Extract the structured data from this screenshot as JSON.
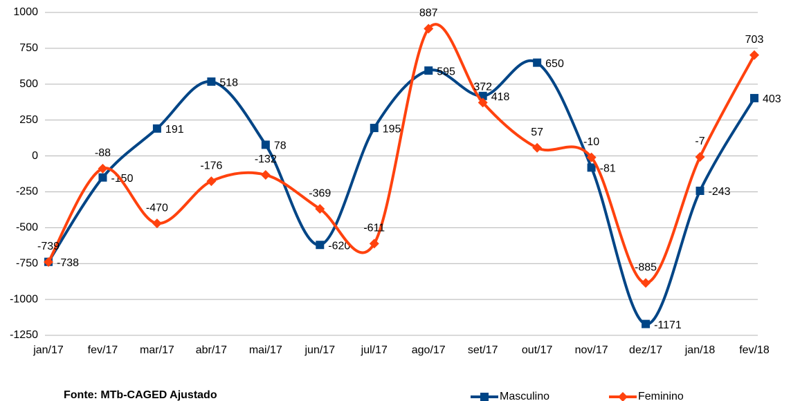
{
  "chart_data": {
    "type": "line",
    "smooth": true,
    "categories": [
      "jan/17",
      "fev/17",
      "mar/17",
      "abr/17",
      "mai/17",
      "jun/17",
      "jul/17",
      "ago/17",
      "set/17",
      "out/17",
      "nov/17",
      "dez/17",
      "jan/18",
      "fev/18"
    ],
    "series": [
      {
        "name": "Masculino",
        "color": "#004586",
        "marker": "square",
        "values": [
          -738,
          -150,
          191,
          518,
          78,
          -620,
          195,
          595,
          418,
          650,
          -81,
          -1171,
          -243,
          403
        ]
      },
      {
        "name": "Feminino",
        "color": "#ff420e",
        "marker": "diamond",
        "values": [
          -739,
          -88,
          -470,
          -176,
          -132,
          -369,
          -611,
          887,
          372,
          57,
          -10,
          -885,
          -7,
          703
        ]
      }
    ],
    "ylim": [
      -1250,
      1000
    ],
    "yticks": [
      -1250,
      -1000,
      -750,
      -500,
      -250,
      0,
      250,
      500,
      750,
      1000
    ],
    "grid": true,
    "legend": "bottom",
    "source": "Fonte: MTb-CAGED Ajustado"
  }
}
